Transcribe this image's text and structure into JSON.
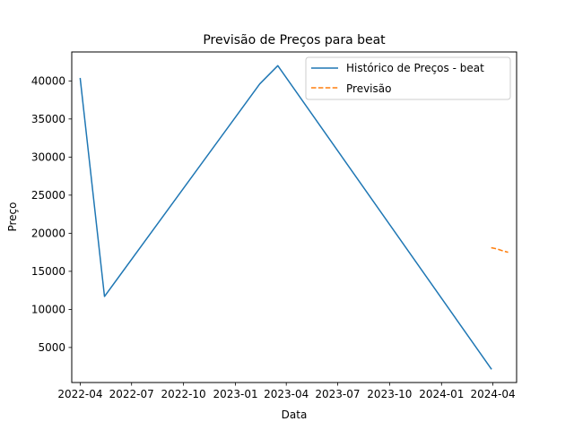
{
  "chart_data": {
    "type": "line",
    "title": "Previsão de Preços para beat",
    "xlabel": "Data",
    "ylabel": "Preço",
    "xlim": [
      "2022-03-17",
      "2024-05-13"
    ],
    "ylim": [
      400,
      43800
    ],
    "x_ticks": [
      "2022-04-01",
      "2022-07-01",
      "2022-10-01",
      "2023-01-01",
      "2023-04-01",
      "2023-07-01",
      "2023-10-01",
      "2024-01-01",
      "2024-04-01"
    ],
    "x_tick_labels": [
      "2022-04",
      "2022-07",
      "2022-10",
      "2023-01",
      "2023-04",
      "2023-07",
      "2023-10",
      "2024-01",
      "2024-04"
    ],
    "y_ticks": [
      5000,
      10000,
      15000,
      20000,
      25000,
      30000,
      35000,
      40000
    ],
    "y_tick_labels": [
      "5000",
      "10000",
      "15000",
      "20000",
      "25000",
      "30000",
      "35000",
      "40000"
    ],
    "grid": false,
    "legend_position": "top-right",
    "series": [
      {
        "name": "Histórico de Preços - beat",
        "color": "#1f77b4",
        "style": "solid",
        "x": [
          "2022-04-01",
          "2022-05-14",
          "2023-02-13",
          "2023-03-17",
          "2024-03-29"
        ],
        "y": [
          40300,
          11700,
          39600,
          42000,
          2200
        ]
      },
      {
        "name": "Previsão",
        "color": "#ff7f0e",
        "style": "dashed",
        "x": [
          "2024-03-29",
          "2024-04-08",
          "2024-04-18",
          "2024-04-28"
        ],
        "y": [
          18100,
          17950,
          17700,
          17500
        ]
      }
    ]
  }
}
